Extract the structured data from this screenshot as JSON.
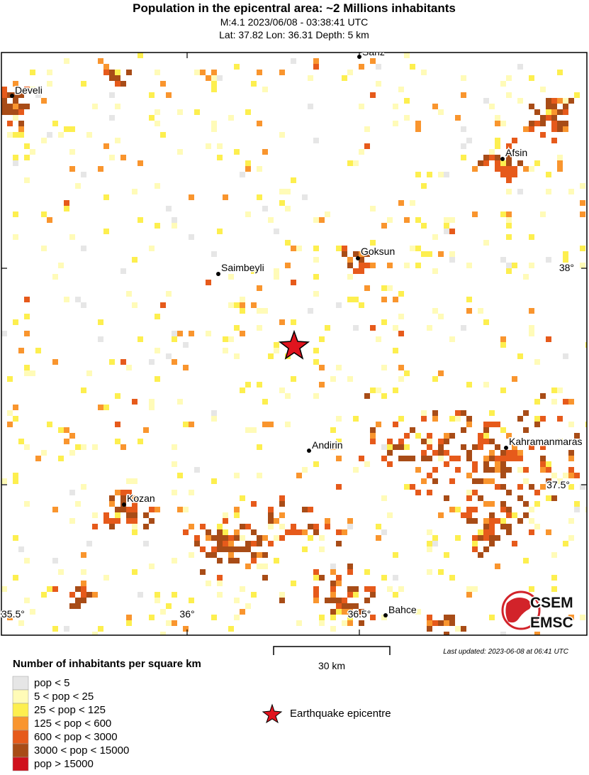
{
  "title": "Population in the epicentral area: ~2 Millions inhabitants",
  "subtitle": [
    "M:4.1 2023/06/08 - 03:38:41 UTC",
    "Lat: 37.82 Lon: 36.31 Depth: 5 km"
  ],
  "map": {
    "cities": [
      "Sariz",
      "Develi",
      "Afsin",
      "Goksun",
      "Saimbeyli",
      "Andirin",
      "Kahramanmaras",
      "Kozan",
      "Bahce"
    ],
    "lat_labels": [
      "38°",
      "37.5°"
    ],
    "lon_labels": [
      "35.5°",
      "36°",
      "36.5°"
    ],
    "scale": "30 km",
    "last_updated": "Last updated: 2023-06-08 at 06:41 UTC",
    "logo": [
      "CSEM",
      "EMSC"
    ]
  },
  "legend": {
    "title": "Number of inhabitants per square km",
    "items": [
      {
        "label": "pop < 5",
        "color": "#e6e6e6"
      },
      {
        "label": "5 < pop < 25",
        "color": "#fffbb8"
      },
      {
        "label": "25 < pop < 125",
        "color": "#fdef4f"
      },
      {
        "label": "125 < pop < 600",
        "color": "#f9952e"
      },
      {
        "label": "600 < pop < 3000",
        "color": "#e65a1b"
      },
      {
        "label": "3000 < pop < 15000",
        "color": "#a84c17"
      },
      {
        "label": "pop > 15000",
        "color": "#d0101c"
      }
    ],
    "epicentre": "Earthquake epicentre"
  }
}
